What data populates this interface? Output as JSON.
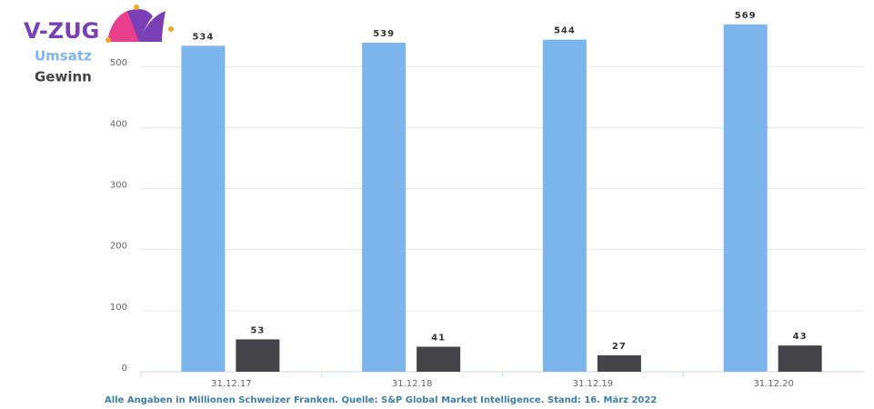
{
  "chart_data": {
    "type": "bar",
    "title": "V-ZUG",
    "categories": [
      "31.12.17",
      "31.12.18",
      "31.12.19",
      "31.12.20"
    ],
    "series": [
      {
        "name": "Umsatz",
        "color": "#7cb5ec",
        "values": [
          534,
          539,
          544,
          569
        ]
      },
      {
        "name": "Gewinn",
        "color": "#434348",
        "values": [
          53,
          41,
          27,
          43
        ]
      }
    ],
    "ylim": [
      0,
      600
    ],
    "yticks": [
      0,
      100,
      200,
      300,
      400,
      500
    ],
    "grid": true,
    "note": "Alle Angaben in Millionen Schweizer Franken. Quelle:  S&P Global Market Intelligence. Stand: 16. März 2022"
  }
}
